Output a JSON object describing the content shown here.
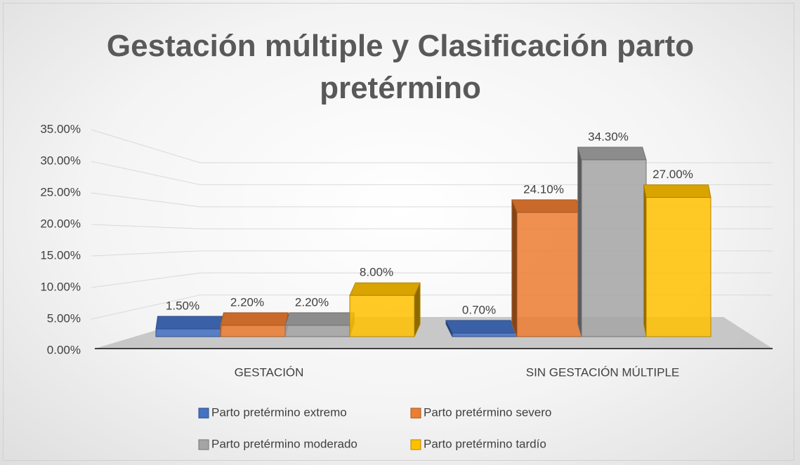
{
  "chart_data": {
    "type": "bar3d",
    "title": "Gestación múltiple y Clasificación parto pretérmino",
    "categories": [
      "GESTACIÓN",
      "SIN GESTACIÓN MÚLTIPLE"
    ],
    "series": [
      {
        "name": "Parto pretérmino extremo",
        "color": "#4472c4",
        "values": [
          1.5,
          0.7
        ],
        "value_labels": [
          "1.50%",
          "0.70%"
        ]
      },
      {
        "name": "Parto pretérmino severo",
        "color": "#ed7d31",
        "values": [
          2.2,
          24.1
        ],
        "value_labels": [
          "2.20%",
          "24.10%"
        ]
      },
      {
        "name": "Parto pretérmino moderado",
        "color": "#a5a5a5",
        "values": [
          2.2,
          34.3
        ],
        "value_labels": [
          "2.20%",
          "34.30%"
        ]
      },
      {
        "name": "Parto pretérmino tardío",
        "color": "#ffc000",
        "values": [
          8.0,
          27.0
        ],
        "value_labels": [
          "8.00%",
          "27.00%"
        ]
      }
    ],
    "ylim": [
      0,
      35
    ],
    "yticks": [
      {
        "value": 0,
        "label": "0.00%"
      },
      {
        "value": 5,
        "label": "5.00%"
      },
      {
        "value": 10,
        "label": "10.00%"
      },
      {
        "value": 15,
        "label": "15.00%"
      },
      {
        "value": 20,
        "label": "20.00%"
      },
      {
        "value": 25,
        "label": "25.00%"
      },
      {
        "value": 30,
        "label": "30.00%"
      },
      {
        "value": 35,
        "label": "35.00%"
      }
    ],
    "grid": true,
    "legend": "bottom"
  }
}
